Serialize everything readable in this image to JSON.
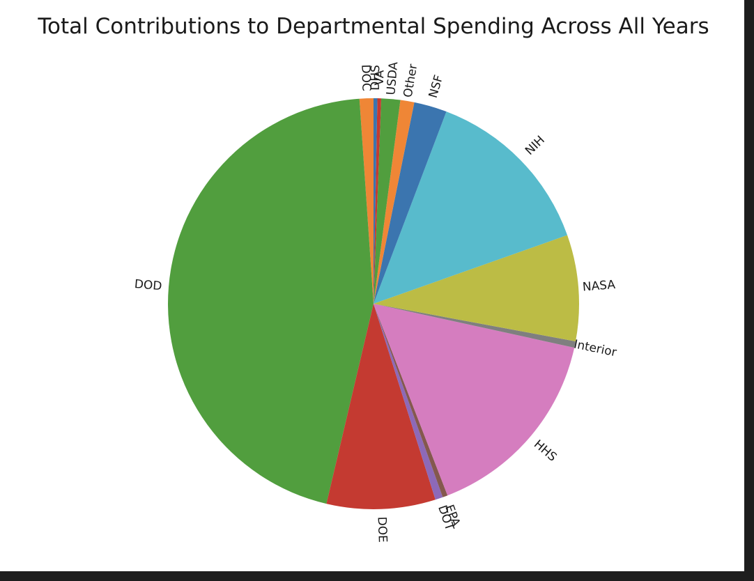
{
  "chart_data": {
    "type": "pie",
    "title": "Total Contributions to Departmental Spending Across All Years",
    "start_angle_deg": 90,
    "direction": "counterclockwise",
    "slices": [
      {
        "label": "DOC",
        "value": 1.1,
        "color": "#ef8636"
      },
      {
        "label": "DOD",
        "value": 45.5,
        "color": "#519e3e"
      },
      {
        "label": "DOE",
        "value": 8.6,
        "color": "#c43a31"
      },
      {
        "label": "DOT",
        "value": 0.6,
        "color": "#8d69b8"
      },
      {
        "label": "EPA",
        "value": 0.4,
        "color": "#84584e"
      },
      {
        "label": "HHS",
        "value": 15.8,
        "color": "#d57dbf"
      },
      {
        "label": "Interior",
        "value": 0.5,
        "color": "#7f7f7f"
      },
      {
        "label": "NASA",
        "value": 8.4,
        "color": "#bcbc45"
      },
      {
        "label": "NIH",
        "value": 13.9,
        "color": "#58bbcc"
      },
      {
        "label": "NSF",
        "value": 2.6,
        "color": "#3b75af"
      },
      {
        "label": "Other",
        "value": 1.1,
        "color": "#ef8636"
      },
      {
        "label": "USDA",
        "value": 1.5,
        "color": "#519e3e"
      },
      {
        "label": "VA",
        "value": 0.3,
        "color": "#c43a31"
      },
      {
        "label": "DHS",
        "value": 0.3,
        "color": "#3b75af"
      }
    ]
  }
}
